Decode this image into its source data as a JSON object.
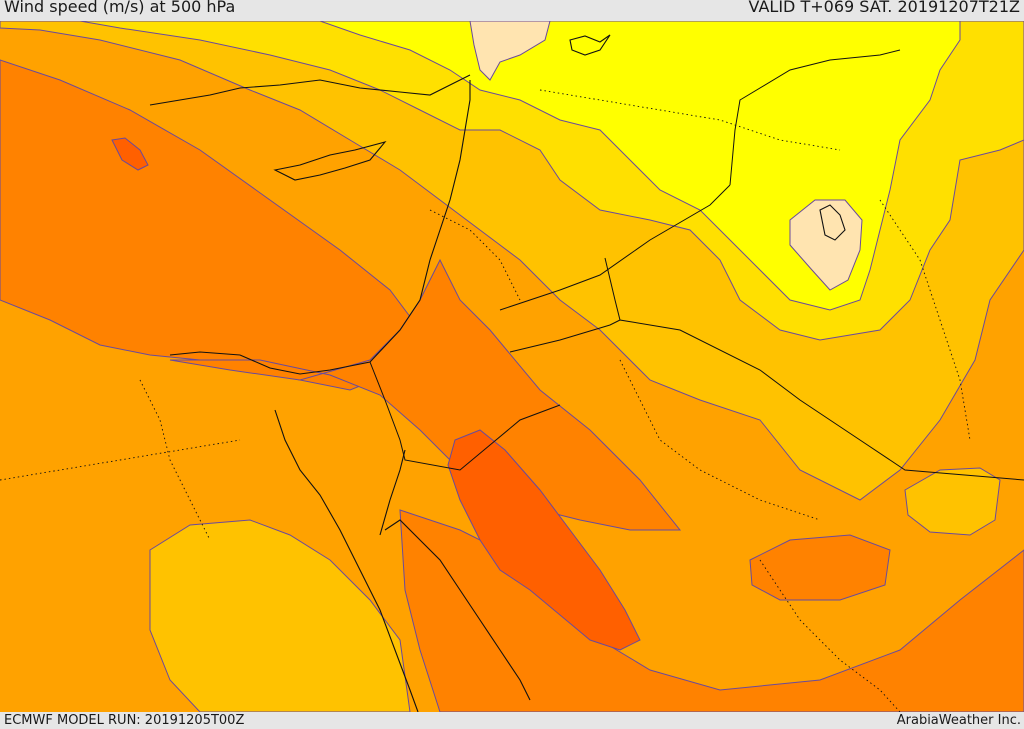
{
  "header": {
    "title": "Wind speed (m/s) at 500 hPa",
    "valid": "VALID T+069 SAT. 20191207T21Z"
  },
  "footer": {
    "model_run": "ECMWF MODEL RUN: 20191205T00Z",
    "credit": "ArabiaWeather Inc."
  },
  "map": {
    "parameter": "Wind speed",
    "units": "m/s",
    "pressure_level_hpa": 500,
    "shading_colors": [
      "#ffe4b0",
      "#ffff00",
      "#ffe000",
      "#ffc200",
      "#ffa200",
      "#ff8200",
      "#ff6000"
    ],
    "contour_color": "#6a4a9c",
    "coastline_color": "#111111"
  }
}
